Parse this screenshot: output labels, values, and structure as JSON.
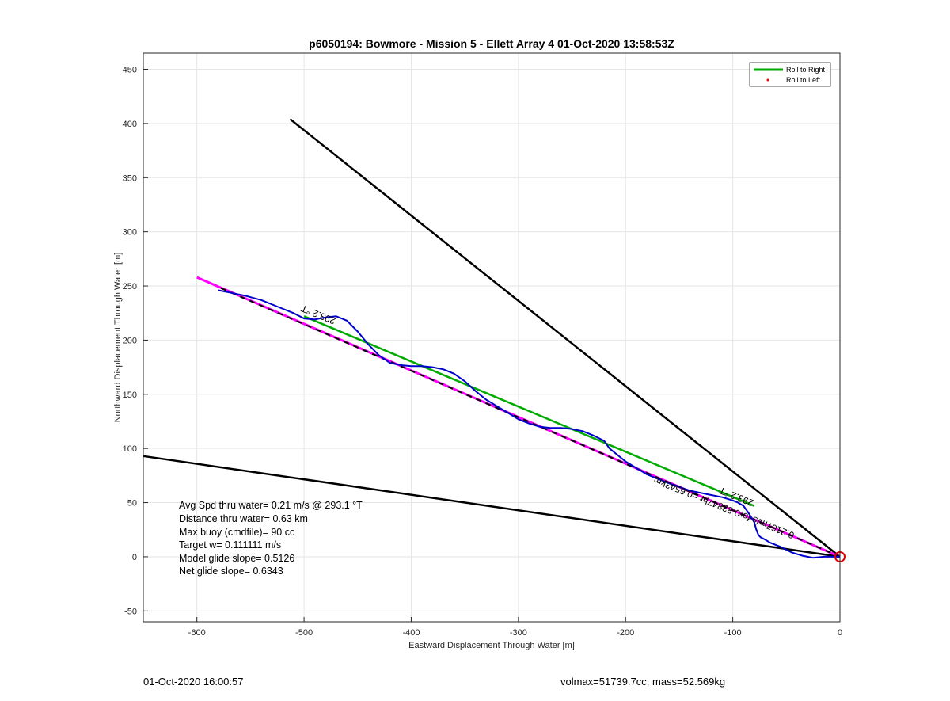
{
  "chart_data": {
    "type": "line",
    "title": "p6050194: Bowmore - Mission 5 - Ellett Array 4 01-Oct-2020 13:58:53Z",
    "xlabel": "Eastward Displacement Through Water [m]",
    "ylabel": "Northward Displacement Through Water [m]",
    "xlim": [
      -650,
      0
    ],
    "ylim": [
      -60,
      465
    ],
    "xticks": [
      -600,
      -500,
      -400,
      -300,
      -200,
      -100,
      0
    ],
    "yticks": [
      -50,
      0,
      50,
      100,
      150,
      200,
      250,
      300,
      350,
      400,
      450
    ],
    "grid": true,
    "legend": {
      "placement": "top-right",
      "entries": [
        {
          "label": "Roll to Right",
          "color": "#00aa00",
          "style": "line"
        },
        {
          "label": "Roll to Left",
          "color": "#ff0000",
          "style": "dot"
        }
      ]
    },
    "series": [
      {
        "kind": "boundary-line",
        "color": "#000000",
        "x": [
          0,
          -513
        ],
        "y": [
          0,
          404
        ]
      },
      {
        "kind": "boundary-line",
        "color": "#000000",
        "x": [
          0,
          -650
        ],
        "y": [
          0,
          93
        ]
      },
      {
        "kind": "roll-right",
        "color": "#00aa00",
        "x": [
          -500,
          -80
        ],
        "y": [
          222,
          47
        ]
      },
      {
        "kind": "net-track",
        "color": "#ff00ff",
        "x": [
          0,
          -600
        ],
        "y": [
          0,
          258
        ]
      },
      {
        "kind": "net-track-dash",
        "color": "#000000",
        "x": [
          0,
          -580
        ],
        "y": [
          0,
          249
        ]
      },
      {
        "kind": "trajectory",
        "color": "#0000cc",
        "x": [
          -580,
          -570,
          -555,
          -540,
          -525,
          -510,
          -500,
          -490,
          -480,
          -470,
          -460,
          -450,
          -440,
          -430,
          -420,
          -410,
          -400,
          -390,
          -380,
          -370,
          -360,
          -350,
          -340,
          -330,
          -320,
          -310,
          -300,
          -290,
          -280,
          -270,
          -260,
          -250,
          -240,
          -230,
          -220,
          -215,
          -200,
          -180,
          -160,
          -140,
          -120,
          -110,
          -100,
          -95,
          -90,
          -85,
          -80,
          -78,
          -76,
          -74,
          -72,
          -70,
          -65,
          -55,
          -45,
          -35,
          -25,
          -15,
          -5,
          0
        ],
        "y": [
          246,
          244,
          241,
          237,
          231,
          225,
          220,
          219,
          221,
          222,
          218,
          208,
          196,
          186,
          179,
          177,
          176,
          176,
          175,
          173,
          169,
          162,
          153,
          145,
          139,
          133,
          127,
          123,
          120,
          119,
          119,
          118,
          116,
          112,
          107,
          100,
          88,
          76,
          68,
          61,
          57,
          55,
          52,
          50,
          47,
          40,
          32,
          25,
          20,
          18,
          17,
          16,
          13,
          9,
          4,
          1,
          -1,
          0,
          0,
          0
        ]
      }
    ],
    "markers": [
      {
        "type": "circle",
        "color": "#dd0000",
        "x": 0,
        "y": 0
      }
    ],
    "annotations": {
      "heading_upper": {
        "text": "293.2 °T",
        "x": -470,
        "y": 220,
        "rotate": 202
      },
      "heading_lower": {
        "text": "293.2 °T",
        "x": -80,
        "y": 52,
        "rotate": 202
      },
      "speed_text": {
        "text": "0.2167m/s for0.83847hr =0.6543km",
        "x": -42,
        "y": 22,
        "rotate": 202
      }
    },
    "info_lines": [
      "Avg Spd thru water=  0.21 m/s @ 293.1 °T",
      "Distance thru water=  0.63 km",
      "Max buoy (cmdfile)= 90 cc",
      "Target w= 0.111111 m/s",
      "Model glide slope= 0.5126",
      "Net glide slope= 0.6343"
    ]
  },
  "footer": {
    "left": "01-Oct-2020 16:00:57",
    "right": "volmax=51739.7cc, mass=52.569kg"
  }
}
